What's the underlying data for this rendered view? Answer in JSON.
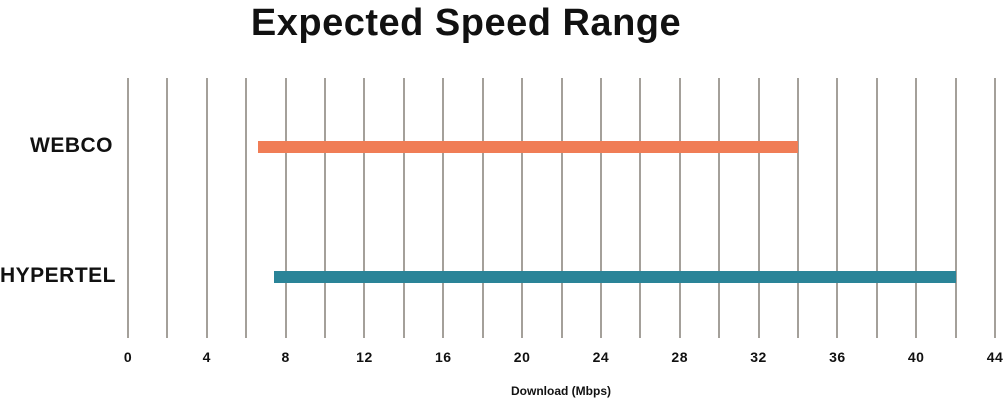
{
  "chart_data": {
    "type": "bar",
    "orientation": "horizontal-range",
    "title": "Expected Speed Range",
    "xlabel": "Download (Mbps)",
    "categories": [
      "WEBCO",
      "HYPERTEL"
    ],
    "bars": [
      {
        "category": "WEBCO",
        "start_mbps": 6.6,
        "end_mbps": 34.0,
        "color": "#F07D56"
      },
      {
        "category": "HYPERTEL",
        "start_mbps": 7.4,
        "end_mbps": 42.0,
        "color": "#2A8498"
      }
    ],
    "xlim": [
      0,
      44
    ],
    "x_ticks": [
      0,
      4,
      8,
      12,
      16,
      20,
      24,
      28,
      32,
      36,
      40,
      44
    ],
    "gridline_step_mbps": 2,
    "grid": "vertical-only",
    "gridline_color": "#A4A09A",
    "text_color": "#111111",
    "legend": "none"
  }
}
